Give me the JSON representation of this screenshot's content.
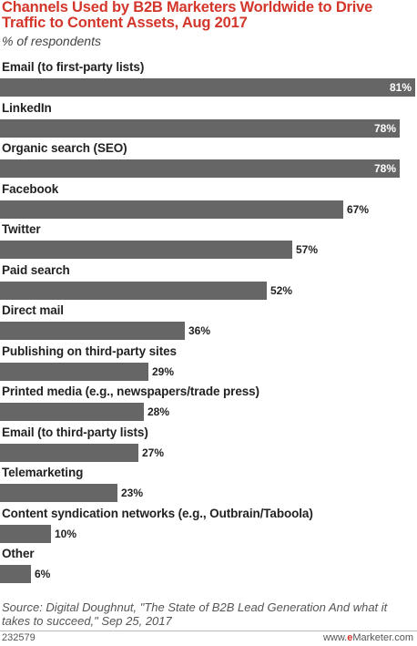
{
  "header": {
    "title": "Channels Used by B2B Marketers Worldwide to Drive Traffic to Content Assets, Aug 2017",
    "subtitle": "% of respondents"
  },
  "chart_data": {
    "type": "bar",
    "orientation": "horizontal",
    "title": "Channels Used by B2B Marketers Worldwide to Drive Traffic to Content Assets, Aug 2017",
    "subtitle": "% of respondents",
    "categories": [
      "Email (to first-party lists)",
      "LinkedIn",
      "Organic search (SEO)",
      "Facebook",
      "Twitter",
      "Paid search",
      "Direct mail",
      "Publishing on third-party sites",
      "Printed media (e.g., newspapers/trade press)",
      "Email (to third-party lists)",
      "Telemarketing",
      "Content syndication networks (e.g., Outbrain/Taboola)",
      "Other"
    ],
    "values": [
      81,
      78,
      78,
      67,
      57,
      52,
      36,
      29,
      28,
      27,
      23,
      10,
      6
    ],
    "value_labels": [
      "81%",
      "78%",
      "78%",
      "67%",
      "57%",
      "52%",
      "36%",
      "29%",
      "28%",
      "27%",
      "23%",
      "10%",
      "6%"
    ],
    "xlim": [
      0,
      81
    ],
    "grid": false,
    "bar_color": "#666666",
    "legend": "none"
  },
  "source": "Source: Digital Doughnut, \"The State of B2B Lead Generation And what it takes to succeed,\" Sep 25, 2017",
  "footer": {
    "chart_id": "232579",
    "brand_prefix": "www.",
    "brand_e": "e",
    "brand_suffix": "Marketer.com"
  },
  "colors": {
    "title": "#d3362a",
    "bar": "#666666",
    "brand": "#d3362a"
  }
}
